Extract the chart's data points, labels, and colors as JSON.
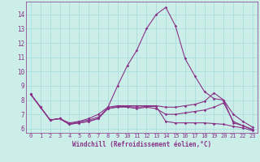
{
  "xlabel": "Windchill (Refroidissement éolien,°C)",
  "background_color": "#cceee8",
  "grid_color": "#aadddd",
  "line_color": "#883388",
  "xlim": [
    -0.5,
    23.5
  ],
  "ylim": [
    5.7,
    14.9
  ],
  "xticks": [
    0,
    1,
    2,
    3,
    4,
    5,
    6,
    7,
    8,
    9,
    10,
    11,
    12,
    13,
    14,
    15,
    16,
    17,
    18,
    19,
    20,
    21,
    22,
    23
  ],
  "yticks": [
    6,
    7,
    8,
    9,
    10,
    11,
    12,
    13,
    14
  ],
  "lines": [
    {
      "x": [
        0,
        1,
        2,
        3,
        4,
        5,
        6,
        7,
        8,
        9,
        10,
        11,
        12,
        13,
        14,
        15,
        16,
        17,
        18,
        19,
        20,
        21,
        22,
        23
      ],
      "y": [
        8.4,
        7.5,
        6.6,
        6.7,
        6.3,
        6.4,
        6.5,
        6.7,
        7.5,
        9.0,
        10.4,
        11.5,
        13.0,
        14.0,
        14.5,
        13.2,
        10.9,
        9.7,
        8.6,
        8.1,
        8.0,
        6.4,
        6.2,
        5.9
      ]
    },
    {
      "x": [
        0,
        1,
        2,
        3,
        4,
        5,
        6,
        7,
        8,
        9,
        10,
        11,
        12,
        13,
        14,
        15,
        16,
        17,
        18,
        19,
        20,
        21,
        22,
        23
      ],
      "y": [
        8.4,
        7.5,
        6.6,
        6.7,
        6.3,
        6.5,
        6.7,
        7.0,
        7.5,
        7.6,
        7.6,
        7.6,
        7.6,
        7.6,
        7.5,
        7.5,
        7.6,
        7.7,
        7.9,
        8.5,
        8.0,
        7.0,
        6.5,
        6.1
      ]
    },
    {
      "x": [
        0,
        1,
        2,
        3,
        4,
        5,
        6,
        7,
        8,
        9,
        10,
        11,
        12,
        13,
        14,
        15,
        16,
        17,
        18,
        19,
        20,
        21,
        22,
        23
      ],
      "y": [
        8.4,
        7.5,
        6.6,
        6.7,
        6.4,
        6.5,
        6.6,
        6.8,
        7.4,
        7.5,
        7.5,
        7.4,
        7.5,
        7.4,
        7.0,
        7.0,
        7.1,
        7.2,
        7.3,
        7.5,
        7.8,
        6.5,
        6.2,
        5.95
      ]
    },
    {
      "x": [
        0,
        1,
        2,
        3,
        4,
        5,
        6,
        7,
        8,
        9,
        10,
        11,
        12,
        13,
        14,
        15,
        16,
        17,
        18,
        19,
        20,
        21,
        22,
        23
      ],
      "y": [
        8.4,
        7.5,
        6.6,
        6.7,
        6.3,
        6.4,
        6.5,
        6.7,
        7.4,
        7.55,
        7.55,
        7.5,
        7.55,
        7.55,
        6.5,
        6.4,
        6.4,
        6.4,
        6.4,
        6.35,
        6.3,
        6.15,
        6.05,
        5.85
      ]
    }
  ]
}
